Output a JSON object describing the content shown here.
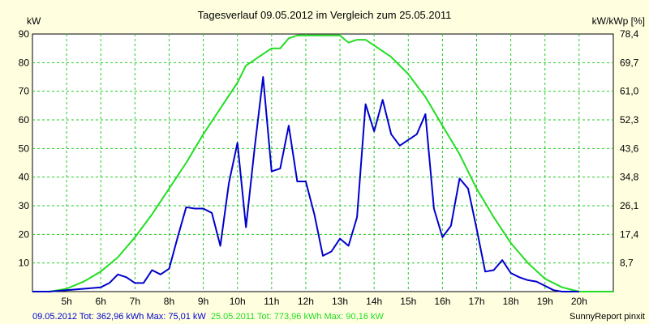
{
  "chart_data": {
    "type": "line",
    "title": "Tagesverlauf 09.05.2012 im Vergleich zum 25.05.2011",
    "y_left_label": "kW",
    "y_right_label": "kW/kWp [%]",
    "ylim": [
      0,
      90
    ],
    "y_ticks": [
      10,
      20,
      30,
      40,
      50,
      60,
      70,
      80,
      90
    ],
    "y_right_ticks": [
      "8,7",
      "17,4",
      "26,1",
      "34,8",
      "43,6",
      "52,3",
      "61,0",
      "69,7",
      "78,4"
    ],
    "xlim": [
      4.0,
      21.0
    ],
    "x_ticks": [
      5,
      6,
      7,
      8,
      9,
      10,
      11,
      12,
      13,
      14,
      15,
      16,
      17,
      18,
      19,
      20
    ],
    "x_tick_labels": [
      "5h",
      "6h",
      "7h",
      "8h",
      "9h",
      "10h",
      "11h",
      "12h",
      "13h",
      "14h",
      "15h",
      "16h",
      "17h",
      "18h",
      "19h",
      "20h"
    ],
    "grid": true,
    "series": [
      {
        "name": "09.05.2012",
        "color": "#0000cc",
        "x": [
          4.0,
          4.5,
          5.0,
          5.5,
          6.0,
          6.25,
          6.5,
          6.75,
          7.0,
          7.25,
          7.5,
          7.75,
          8.0,
          8.25,
          8.5,
          8.75,
          9.0,
          9.25,
          9.5,
          9.75,
          10.0,
          10.25,
          10.5,
          10.75,
          11.0,
          11.25,
          11.5,
          11.75,
          12.0,
          12.25,
          12.5,
          12.75,
          13.0,
          13.25,
          13.5,
          13.75,
          14.0,
          14.25,
          14.5,
          14.75,
          15.0,
          15.25,
          15.5,
          15.75,
          16.0,
          16.25,
          16.5,
          16.75,
          17.0,
          17.25,
          17.5,
          17.75,
          18.0,
          18.25,
          18.5,
          18.75,
          19.0,
          19.25,
          19.5,
          19.75,
          20.0
        ],
        "values": [
          0,
          0,
          0.5,
          1,
          1.5,
          3,
          6,
          5,
          3,
          3,
          7.5,
          6,
          8,
          19,
          29.5,
          29,
          29,
          27.5,
          16,
          38,
          52,
          22.5,
          50,
          75,
          42,
          43,
          58,
          38.5,
          38.5,
          27,
          12.5,
          14,
          18.5,
          16,
          26,
          65.5,
          56,
          67,
          55,
          51,
          53,
          55,
          62,
          29,
          19,
          23,
          39.5,
          36,
          22,
          7,
          7.5,
          11,
          6.5,
          5,
          4,
          3.5,
          2,
          0.5,
          0,
          0,
          0
        ]
      },
      {
        "name": "25.05.2011",
        "color": "#22dd22",
        "x": [
          4.0,
          4.5,
          5.0,
          5.5,
          6.0,
          6.5,
          7.0,
          7.5,
          8.0,
          8.5,
          9.0,
          9.5,
          10.0,
          10.25,
          10.5,
          10.75,
          11.0,
          11.25,
          11.5,
          11.75,
          12.0,
          12.5,
          13.0,
          13.25,
          13.5,
          13.75,
          14.0,
          14.5,
          15.0,
          15.5,
          16.0,
          16.5,
          17.0,
          17.5,
          18.0,
          18.5,
          19.0,
          19.5,
          20.0,
          20.5,
          21.0
        ],
        "values": [
          0,
          0,
          1,
          3.5,
          7,
          12,
          19,
          27,
          36,
          45,
          55,
          64,
          73,
          79,
          81,
          83,
          85,
          85,
          88.5,
          89.5,
          89.5,
          89.5,
          89.5,
          87,
          88,
          88,
          86,
          82,
          76,
          68,
          58,
          48,
          36,
          26,
          17,
          10,
          4.5,
          1.5,
          0,
          0,
          0
        ]
      }
    ]
  },
  "footer": {
    "blue_text": "09.05.2012 Tot: 362,96 kWh Max: 75,01 kW",
    "green_text": "25.05.2011 Tot: 773,96 kWh Max: 90,16 kW",
    "brand": "SunnyReport pinxit"
  },
  "colors": {
    "background": "#ffffe0",
    "plot_area": "#ffffff",
    "series_blue": "#0000cc",
    "series_green": "#22dd22",
    "grid": "#22cc22"
  }
}
